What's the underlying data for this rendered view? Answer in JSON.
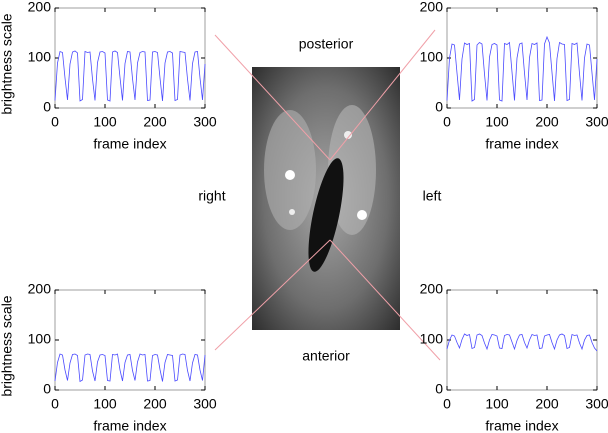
{
  "chart_data": [
    {
      "type": "line",
      "xlabel": "frame index",
      "ylabel": "brightness scale",
      "color": "#4a4aff",
      "xlim": [
        0,
        300
      ],
      "ylim": [
        0,
        200
      ],
      "xticks": [
        0,
        100,
        200,
        300
      ],
      "yticks": [
        0,
        100,
        200
      ],
      "x": [
        0,
        5,
        10,
        15,
        20,
        25,
        30,
        35,
        40,
        45,
        50,
        55,
        60,
        65,
        70,
        75,
        80,
        85,
        90,
        95,
        100,
        105,
        110,
        115,
        120,
        125,
        130,
        135,
        140,
        145,
        150,
        155,
        160,
        165,
        170,
        175,
        180,
        185,
        190,
        195,
        200,
        205,
        210,
        215,
        220,
        225,
        230,
        235,
        240,
        245,
        250,
        255,
        260,
        265,
        270,
        275,
        280,
        285,
        290,
        295,
        300
      ],
      "values": [
        15,
        90,
        113,
        111,
        60,
        16,
        88,
        112,
        114,
        110,
        14,
        17,
        113,
        111,
        112,
        58,
        15,
        91,
        112,
        113,
        110,
        16,
        14,
        112,
        114,
        111,
        61,
        15,
        89,
        113,
        112,
        59,
        16,
        90,
        111,
        113,
        112,
        15,
        16,
        112,
        113,
        111,
        60,
        14,
        90,
        112,
        113,
        110,
        15,
        17,
        113,
        112,
        111,
        58,
        15,
        89,
        112,
        113,
        60,
        16,
        88
      ]
    },
    {
      "type": "line",
      "xlabel": "frame index",
      "color": "#4a4aff",
      "xlim": [
        0,
        300
      ],
      "ylim": [
        0,
        200
      ],
      "xticks": [
        0,
        100,
        200,
        300
      ],
      "yticks": [
        0,
        100,
        200
      ],
      "x": [
        0,
        5,
        10,
        15,
        20,
        25,
        30,
        35,
        40,
        45,
        50,
        55,
        60,
        65,
        70,
        75,
        80,
        85,
        90,
        95,
        100,
        105,
        110,
        115,
        120,
        125,
        130,
        135,
        140,
        145,
        150,
        155,
        160,
        165,
        170,
        175,
        180,
        185,
        190,
        195,
        200,
        205,
        210,
        215,
        220,
        225,
        230,
        235,
        240,
        245,
        250,
        255,
        260,
        265,
        270,
        275,
        280,
        285,
        290,
        295,
        300
      ],
      "values": [
        15,
        100,
        128,
        126,
        70,
        16,
        98,
        130,
        127,
        129,
        14,
        17,
        126,
        131,
        128,
        68,
        15,
        102,
        127,
        129,
        126,
        16,
        14,
        129,
        127,
        131,
        72,
        15,
        100,
        128,
        130,
        70,
        16,
        101,
        129,
        127,
        130,
        15,
        16,
        128,
        142,
        130,
        71,
        14,
        99,
        131,
        128,
        127,
        15,
        17,
        129,
        127,
        130,
        69,
        15,
        100,
        128,
        126,
        70,
        16,
        98
      ]
    },
    {
      "type": "line",
      "xlabel": "frame index",
      "ylabel": "brightness scale",
      "color": "#4a4aff",
      "xlim": [
        0,
        300
      ],
      "ylim": [
        0,
        200
      ],
      "xticks": [
        0,
        100,
        200,
        300
      ],
      "yticks": [
        0,
        100,
        200
      ],
      "x": [
        0,
        5,
        10,
        15,
        20,
        25,
        30,
        35,
        40,
        45,
        50,
        55,
        60,
        65,
        70,
        75,
        80,
        85,
        90,
        95,
        100,
        105,
        110,
        115,
        120,
        125,
        130,
        135,
        140,
        145,
        150,
        155,
        160,
        165,
        170,
        175,
        180,
        185,
        190,
        195,
        200,
        205,
        210,
        215,
        220,
        225,
        230,
        235,
        240,
        245,
        250,
        255,
        260,
        265,
        270,
        275,
        280,
        285,
        290,
        295,
        300
      ],
      "values": [
        18,
        55,
        72,
        70,
        40,
        19,
        54,
        71,
        72,
        69,
        17,
        20,
        70,
        72,
        71,
        38,
        18,
        56,
        70,
        71,
        69,
        19,
        18,
        71,
        70,
        72,
        40,
        18,
        55,
        70,
        71,
        39,
        19,
        56,
        72,
        70,
        71,
        18,
        19,
        69,
        71,
        70,
        41,
        17,
        55,
        71,
        70,
        69,
        18,
        20,
        70,
        72,
        71,
        39,
        18,
        54,
        71,
        70,
        40,
        19,
        70
      ]
    },
    {
      "type": "line",
      "xlabel": "frame index",
      "color": "#4a4aff",
      "xlim": [
        0,
        300
      ],
      "ylim": [
        0,
        200
      ],
      "xticks": [
        0,
        100,
        200,
        300
      ],
      "yticks": [
        0,
        100,
        200
      ],
      "x": [
        0,
        5,
        10,
        15,
        20,
        25,
        30,
        35,
        40,
        45,
        50,
        55,
        60,
        65,
        70,
        75,
        80,
        85,
        90,
        95,
        100,
        105,
        110,
        115,
        120,
        125,
        130,
        135,
        140,
        145,
        150,
        155,
        160,
        165,
        170,
        175,
        180,
        185,
        190,
        195,
        200,
        205,
        210,
        215,
        220,
        225,
        230,
        235,
        240,
        245,
        250,
        255,
        260,
        265,
        270,
        275,
        280,
        285,
        290,
        295,
        300
      ],
      "values": [
        82,
        100,
        110,
        108,
        95,
        84,
        101,
        112,
        109,
        111,
        83,
        85,
        110,
        112,
        109,
        94,
        82,
        100,
        111,
        110,
        108,
        84,
        83,
        109,
        111,
        110,
        96,
        82,
        99,
        110,
        111,
        95,
        84,
        100,
        111,
        109,
        110,
        83,
        84,
        108,
        110,
        111,
        95,
        82,
        100,
        110,
        112,
        109,
        83,
        85,
        111,
        109,
        110,
        94,
        82,
        100,
        109,
        110,
        95,
        84,
        78
      ]
    }
  ],
  "image_labels": {
    "top": "posterior",
    "bottom": "anterior",
    "left": "right",
    "right": "left"
  }
}
